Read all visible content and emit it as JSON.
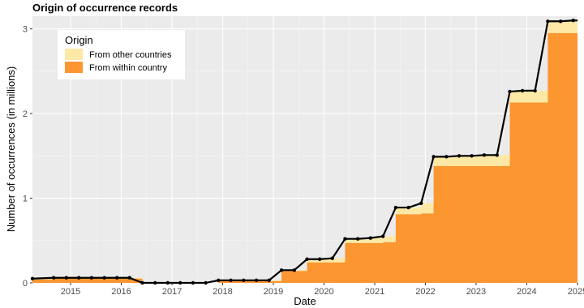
{
  "chart_data": {
    "type": "area",
    "title": "Origin of occurrence records",
    "xlabel": "Date",
    "ylabel": "Number of occurrences (in millions)",
    "xlim": [
      "2014-04-01",
      "2025-01-01"
    ],
    "ylim": [
      0,
      3.15
    ],
    "x_ticks": [
      "2015",
      "2016",
      "2017",
      "2018",
      "2019",
      "2020",
      "2021",
      "2022",
      "2023",
      "2024",
      "2025"
    ],
    "x_tick_dates": [
      "2015-01-01",
      "2016-01-01",
      "2017-01-01",
      "2018-01-01",
      "2019-01-01",
      "2020-01-01",
      "2021-01-01",
      "2022-01-01",
      "2023-01-01",
      "2024-01-01",
      "2025-01-01"
    ],
    "y_ticks": [
      0,
      1,
      2,
      3
    ],
    "grid": true,
    "legend": {
      "title": "Origin",
      "position": "top-left",
      "entries": [
        {
          "label": "From other countries",
          "color": "#fde8a6"
        },
        {
          "label": "From within country",
          "color": "#fb9630"
        }
      ]
    },
    "dates": [
      "2014-04-01",
      "2014-09-01",
      "2014-12-01",
      "2015-03-01",
      "2015-06-01",
      "2015-09-01",
      "2015-12-01",
      "2016-03-01",
      "2016-06-01",
      "2016-09-01",
      "2016-12-01",
      "2017-03-01",
      "2017-06-01",
      "2017-09-01",
      "2017-12-01",
      "2018-03-01",
      "2018-06-01",
      "2018-09-01",
      "2018-12-01",
      "2019-03-01",
      "2019-06-01",
      "2019-09-01",
      "2019-12-01",
      "2020-03-01",
      "2020-06-01",
      "2020-09-01",
      "2020-12-01",
      "2021-03-01",
      "2021-06-01",
      "2021-09-01",
      "2021-12-01",
      "2022-03-01",
      "2022-06-01",
      "2022-09-01",
      "2022-12-01",
      "2023-03-01",
      "2023-06-01",
      "2023-09-01",
      "2023-12-01",
      "2024-03-01",
      "2024-06-01",
      "2024-09-01",
      "2024-12-01"
    ],
    "series": [
      {
        "name": "From within country",
        "color": "#fb9630",
        "values": [
          0.04,
          0.05,
          0.05,
          0.05,
          0.05,
          0.05,
          0.05,
          0.05,
          0.0,
          0.0,
          0.0,
          0.0,
          0.0,
          0.0,
          0.02,
          0.02,
          0.02,
          0.02,
          0.02,
          0.14,
          0.14,
          0.24,
          0.24,
          0.24,
          0.47,
          0.47,
          0.47,
          0.48,
          0.81,
          0.81,
          0.82,
          1.38,
          1.38,
          1.38,
          1.38,
          1.38,
          1.38,
          2.13,
          2.13,
          2.13,
          2.95,
          2.95,
          2.95
        ]
      },
      {
        "name": "From other countries",
        "color": "#fde8a6",
        "values": [
          0.01,
          0.01,
          0.01,
          0.01,
          0.01,
          0.01,
          0.01,
          0.01,
          0.0,
          0.0,
          0.0,
          0.0,
          0.0,
          0.0,
          0.01,
          0.01,
          0.01,
          0.01,
          0.01,
          0.01,
          0.01,
          0.04,
          0.04,
          0.05,
          0.05,
          0.05,
          0.06,
          0.07,
          0.08,
          0.08,
          0.12,
          0.11,
          0.11,
          0.12,
          0.12,
          0.13,
          0.13,
          0.13,
          0.14,
          0.14,
          0.14,
          0.14,
          0.15
        ]
      }
    ],
    "total_points": [
      0.05,
      0.06,
      0.06,
      0.06,
      0.06,
      0.06,
      0.06,
      0.06,
      0.0,
      0.0,
      0.0,
      0.0,
      0.0,
      0.0,
      0.03,
      0.03,
      0.03,
      0.03,
      0.03,
      0.15,
      0.15,
      0.28,
      0.28,
      0.29,
      0.52,
      0.52,
      0.53,
      0.55,
      0.89,
      0.89,
      0.94,
      1.49,
      1.49,
      1.5,
      1.5,
      1.51,
      1.51,
      2.26,
      2.27,
      2.27,
      3.09,
      3.09,
      3.1
    ]
  }
}
